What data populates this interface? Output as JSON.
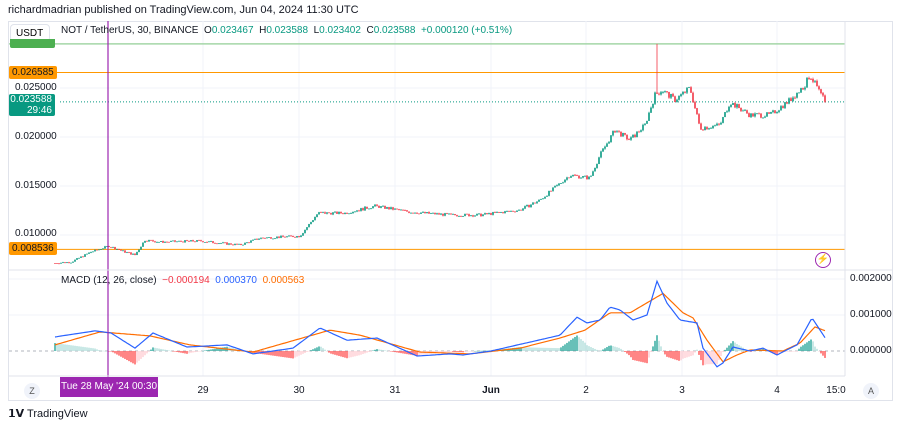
{
  "header": {
    "published": "richardmadrian published on TradingView.com, Jun 04, 2024 11:30 UTC"
  },
  "toolbar": {
    "currency": "USDT"
  },
  "legend": {
    "symbol": "NOT / TetherUS, 30, BINANCE",
    "o_label": "O",
    "o": "0.023467",
    "h_label": "H",
    "h": "0.023588",
    "l_label": "L",
    "l": "0.023402",
    "c_label": "C",
    "c": "0.023588",
    "change": "+0.000120 (+0.51%)"
  },
  "price_axis": {
    "ticks": [
      "0.025000",
      "0.020000",
      "0.015000",
      "0.010000"
    ],
    "tick_values": [
      0.025,
      0.02,
      0.015,
      0.01
    ],
    "last_price": "0.023588",
    "countdown": "29:46",
    "level_upper": "0.026585",
    "level_lower": "0.008536"
  },
  "macd": {
    "label": "MACD (12, 26, close)",
    "hist": "−0.000194",
    "macd": "0.000370",
    "signal": "0.000563",
    "ticks": [
      "0.002000",
      "0.001000",
      "0.000000"
    ],
    "tick_values": [
      0.002,
      0.001,
      0
    ]
  },
  "time_axis": {
    "crosshair": "Tue 28 May '24   00:30",
    "labels": [
      "29",
      "30",
      "31",
      "Jun",
      "2",
      "3",
      "4",
      "15:0"
    ]
  },
  "buttons": {
    "zoom": "Z",
    "auto": "A"
  },
  "footer": {
    "brand": "TradingView"
  },
  "colors": {
    "up": "#089981",
    "down": "#f23645",
    "level": "#ff9800",
    "top_level": "#a5d6a7",
    "crosshair": "#9c27b0",
    "macd": "#2962ff",
    "signal": "#ff6d00"
  },
  "chart_data": {
    "type": "candlestick",
    "interval": "30",
    "price_path": [
      [
        "05-27 11:00",
        0.00714
      ],
      [
        "05-27 15:00",
        0.00724
      ],
      [
        "05-27 20:00",
        0.00827
      ],
      [
        "05-28 00:30",
        0.00888
      ],
      [
        "05-28 04:30",
        0.00827
      ],
      [
        "05-28 07:00",
        0.00796
      ],
      [
        "05-28 09:30",
        0.00949
      ],
      [
        "05-28 13:15",
        0.00929
      ],
      [
        "05-28 23:15",
        0.00939
      ],
      [
        "05-29 09:15",
        0.00898
      ],
      [
        "05-29 14:15",
        0.00969
      ],
      [
        "05-30 00:15",
        0.0099
      ],
      [
        "05-30 04:45",
        0.01224
      ],
      [
        "05-30 11:30",
        0.01224
      ],
      [
        "05-30 19:00",
        0.01296
      ],
      [
        "05-31 03:45",
        0.01235
      ],
      [
        "05-31 13:45",
        0.01204
      ],
      [
        "05-31 21:15",
        0.01204
      ],
      [
        "06-01 07:15",
        0.01255
      ],
      [
        "06-01 12:15",
        0.01357
      ],
      [
        "06-01 19:45",
        0.01612
      ],
      [
        "06-02 00:45",
        0.01582
      ],
      [
        "06-02 03:15",
        0.01816
      ],
      [
        "06-02 07:00",
        0.02071
      ],
      [
        "06-02 10:45",
        0.01969
      ],
      [
        "06-02 14:30",
        0.02122
      ],
      [
        "06-02 17:00",
        0.02429
      ],
      [
        "06-02 18:45",
        0.0248
      ],
      [
        "06-02 22:00",
        0.02378
      ],
      [
        "06-03 01:45",
        0.025
      ],
      [
        "06-03 04:15",
        0.02092
      ],
      [
        "06-03 09:15",
        0.02122
      ],
      [
        "06-03 11:45",
        0.02357
      ],
      [
        "06-03 16:45",
        0.02224
      ],
      [
        "06-03 21:45",
        0.02224
      ],
      [
        "06-04 02:45",
        0.02378
      ],
      [
        "06-04 06:30",
        0.02531
      ],
      [
        "06-04 07:45",
        0.02633
      ],
      [
        "06-04 11:30",
        0.023588
      ]
    ],
    "spike_high": [
      "06-02 17:30",
      0.0295
    ],
    "macd_line": [
      [
        "05-27 11:00",
        0.00039
      ],
      [
        "05-27 21:00",
        0.00056
      ],
      [
        "05-28 01:00",
        0.0005
      ],
      [
        "05-28 07:00",
        8e-05
      ],
      [
        "05-28 11:30",
        0.0005
      ],
      [
        "05-28 20:00",
        0.00011
      ],
      [
        "05-29 06:00",
        0.00017
      ],
      [
        "05-29 12:30",
        -8e-05
      ],
      [
        "05-29 22:30",
        8e-05
      ],
      [
        "05-30 05:15",
        0.00064
      ],
      [
        "05-30 12:00",
        0.0003
      ],
      [
        "05-30 19:30",
        0.00036
      ],
      [
        "05-31 05:30",
        -0.00014
      ],
      [
        "05-31 13:45",
        -8e-05
      ],
      [
        "05-31 17:00",
        -0.00011
      ],
      [
        "06-01 00:00",
        0
      ],
      [
        "06-01 05:30",
        0.00014
      ],
      [
        "06-01 13:00",
        0.00033
      ],
      [
        "06-01 17:15",
        0.00044
      ],
      [
        "06-01 21:30",
        0.00094
      ],
      [
        "06-02 00:00",
        0.00078
      ],
      [
        "06-02 03:15",
        0.00086
      ],
      [
        "06-02 05:45",
        0.00122
      ],
      [
        "06-02 08:15",
        0.00114
      ],
      [
        "06-02 11:30",
        0.00086
      ],
      [
        "06-02 15:00",
        0.001
      ],
      [
        "06-02 17:30",
        0.00194
      ],
      [
        "06-02 20:00",
        0.00133
      ],
      [
        "06-02 23:15",
        0.00086
      ],
      [
        "06-03 03:30",
        0.00078
      ],
      [
        "06-03 05:00",
        8e-05
      ],
      [
        "06-03 08:30",
        -0.00044
      ],
      [
        "06-03 10:00",
        -0.00033
      ],
      [
        "06-03 12:30",
        0.00011
      ],
      [
        "06-03 16:45",
        0
      ],
      [
        "06-03 20:00",
        8e-05
      ],
      [
        "06-03 23:30",
        -0.00011
      ],
      [
        "06-04 04:30",
        0.00017
      ],
      [
        "06-04 08:15",
        0.00092
      ],
      [
        "06-04 11:30",
        0.00037
      ]
    ],
    "signal_line": [
      [
        "05-27 11:00",
        0.00017
      ],
      [
        "05-27 22:15",
        0.00053
      ],
      [
        "05-28 10:45",
        0.00042
      ],
      [
        "05-28 20:45",
        0.00017
      ],
      [
        "05-29 12:30",
        -3e-05
      ],
      [
        "05-30 07:45",
        0.00058
      ],
      [
        "05-30 15:15",
        0.00044
      ],
      [
        "05-31 06:15",
        -3e-05
      ],
      [
        "05-31 18:45",
        -8e-05
      ],
      [
        "06-01 07:15",
        8e-05
      ],
      [
        "06-01 17:15",
        0.00036
      ],
      [
        "06-01 23:30",
        0.00058
      ],
      [
        "06-02 05:45",
        0.00106
      ],
      [
        "06-02 10:45",
        0.00106
      ],
      [
        "06-02 19:00",
        0.0016
      ],
      [
        "06-03 00:00",
        0.00106
      ],
      [
        "06-03 02:30",
        0.00092
      ],
      [
        "06-03 06:00",
        0.0003
      ],
      [
        "06-03 10:00",
        -0.0003
      ],
      [
        "06-03 13:30",
        -0.00011
      ],
      [
        "06-03 16:45",
        3e-05
      ],
      [
        "06-04 01:00",
        0
      ],
      [
        "06-04 05:15",
        0.00022
      ],
      [
        "06-04 09:00",
        0.00067
      ],
      [
        "06-04 11:30",
        0.000563
      ]
    ],
    "levels": [
      0.026585,
      0.008536
    ]
  }
}
